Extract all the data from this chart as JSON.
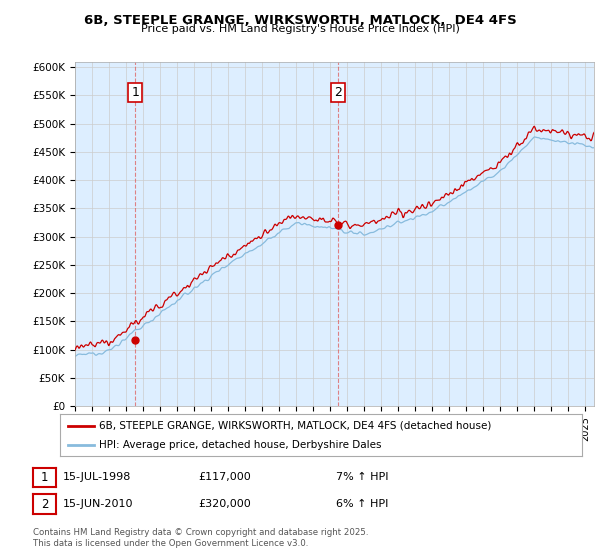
{
  "title": "6B, STEEPLE GRANGE, WIRKSWORTH, MATLOCK,  DE4 4FS",
  "subtitle": "Price paid vs. HM Land Registry's House Price Index (HPI)",
  "ylabel_ticks": [
    "£0",
    "£50K",
    "£100K",
    "£150K",
    "£200K",
    "£250K",
    "£300K",
    "£350K",
    "£400K",
    "£450K",
    "£500K",
    "£550K",
    "£600K"
  ],
  "ytick_vals": [
    0,
    50000,
    100000,
    150000,
    200000,
    250000,
    300000,
    350000,
    400000,
    450000,
    500000,
    550000,
    600000
  ],
  "ylim": [
    0,
    610000
  ],
  "xlim_start": 1995.0,
  "xlim_end": 2025.5,
  "legend_line1": "6B, STEEPLE GRANGE, WIRKSWORTH, MATLOCK, DE4 4FS (detached house)",
  "legend_line2": "HPI: Average price, detached house, Derbyshire Dales",
  "sale1_label": "1",
  "sale1_date": "15-JUL-1998",
  "sale1_price": "£117,000",
  "sale1_hpi": "7% ↑ HPI",
  "sale1_year": 1998.54,
  "sale1_value": 117000,
  "sale2_label": "2",
  "sale2_date": "15-JUN-2010",
  "sale2_price": "£320,000",
  "sale2_hpi": "6% ↑ HPI",
  "sale2_year": 2010.46,
  "sale2_value": 320000,
  "line_color_red": "#cc0000",
  "line_color_blue": "#88bbdd",
  "grid_color": "#cccccc",
  "plot_bg_color": "#ddeeff",
  "background_color": "#ffffff",
  "footer": "Contains HM Land Registry data © Crown copyright and database right 2025.\nThis data is licensed under the Open Government Licence v3.0.",
  "xticks": [
    1995,
    1996,
    1997,
    1998,
    1999,
    2000,
    2001,
    2002,
    2003,
    2004,
    2005,
    2006,
    2007,
    2008,
    2009,
    2010,
    2011,
    2012,
    2013,
    2014,
    2015,
    2016,
    2017,
    2018,
    2019,
    2020,
    2021,
    2022,
    2023,
    2024,
    2025
  ]
}
